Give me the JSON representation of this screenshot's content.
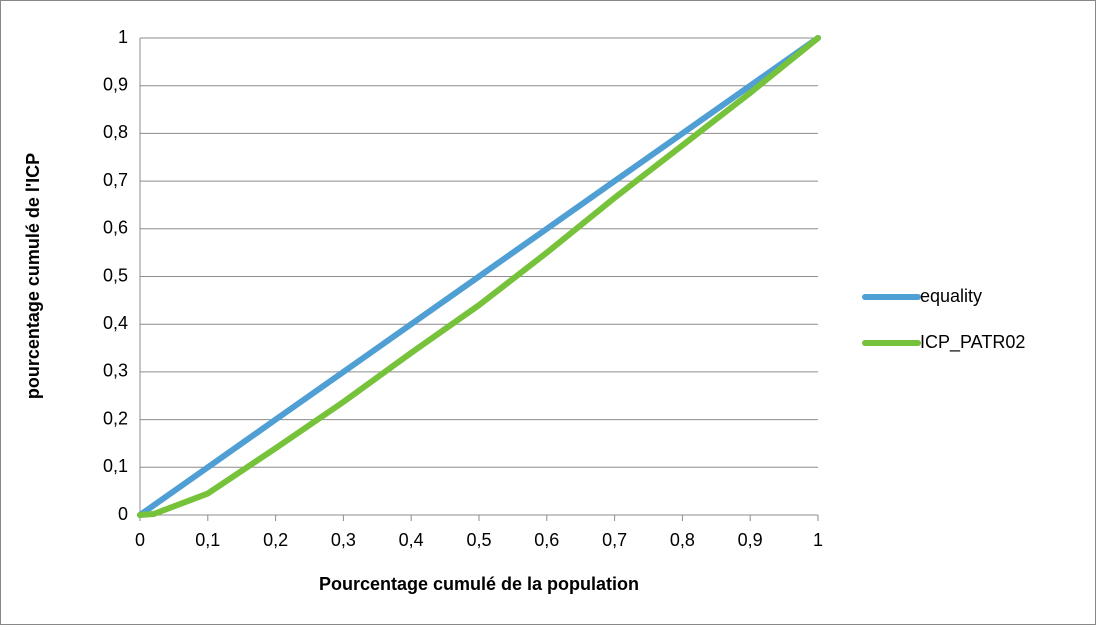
{
  "chart_data": {
    "type": "line",
    "xlabel": "Pourcentage cumulé de la population",
    "ylabel": "pourcentage cumulé de l'ICP",
    "x": [
      0,
      0.02,
      0.1,
      0.2,
      0.3,
      0.4,
      0.5,
      0.6,
      0.7,
      0.8,
      0.9,
      1
    ],
    "series": [
      {
        "name": "equality",
        "color": "#4f9fd4",
        "values": [
          0,
          0.02,
          0.1,
          0.2,
          0.3,
          0.4,
          0.5,
          0.6,
          0.7,
          0.8,
          0.9,
          1
        ]
      },
      {
        "name": "ICP_PATR02",
        "color": "#77c23b",
        "values": [
          0,
          0.002,
          0.045,
          0.14,
          0.237,
          0.34,
          0.44,
          0.55,
          0.665,
          0.775,
          0.885,
          1
        ]
      }
    ],
    "xlim": [
      0,
      1
    ],
    "ylim": [
      0,
      1
    ],
    "xticks": [
      0,
      {
        "value": 0.1,
        "label": "0,1"
      },
      {
        "value": 0.2,
        "label": "0,2"
      },
      {
        "value": 0.3,
        "label": "0,3"
      },
      {
        "value": 0.4,
        "label": "0,4"
      },
      {
        "value": 0.5,
        "label": "0,5"
      },
      {
        "value": 0.6,
        "label": "0,6"
      },
      {
        "value": 0.7,
        "label": "0,7"
      },
      {
        "value": 0.8,
        "label": "0,8"
      },
      {
        "value": 0.9,
        "label": "0,9"
      },
      1
    ],
    "yticks": [
      0,
      {
        "value": 0.1,
        "label": "0,1"
      },
      {
        "value": 0.2,
        "label": "0,2"
      },
      {
        "value": 0.3,
        "label": "0,3"
      },
      {
        "value": 0.4,
        "label": "0,4"
      },
      {
        "value": 0.5,
        "label": "0,5"
      },
      {
        "value": 0.6,
        "label": "0,6"
      },
      {
        "value": 0.7,
        "label": "0,7"
      },
      {
        "value": 0.8,
        "label": "0,8"
      },
      {
        "value": 0.9,
        "label": "0,9"
      },
      1
    ],
    "grid": true,
    "legend": "right"
  }
}
